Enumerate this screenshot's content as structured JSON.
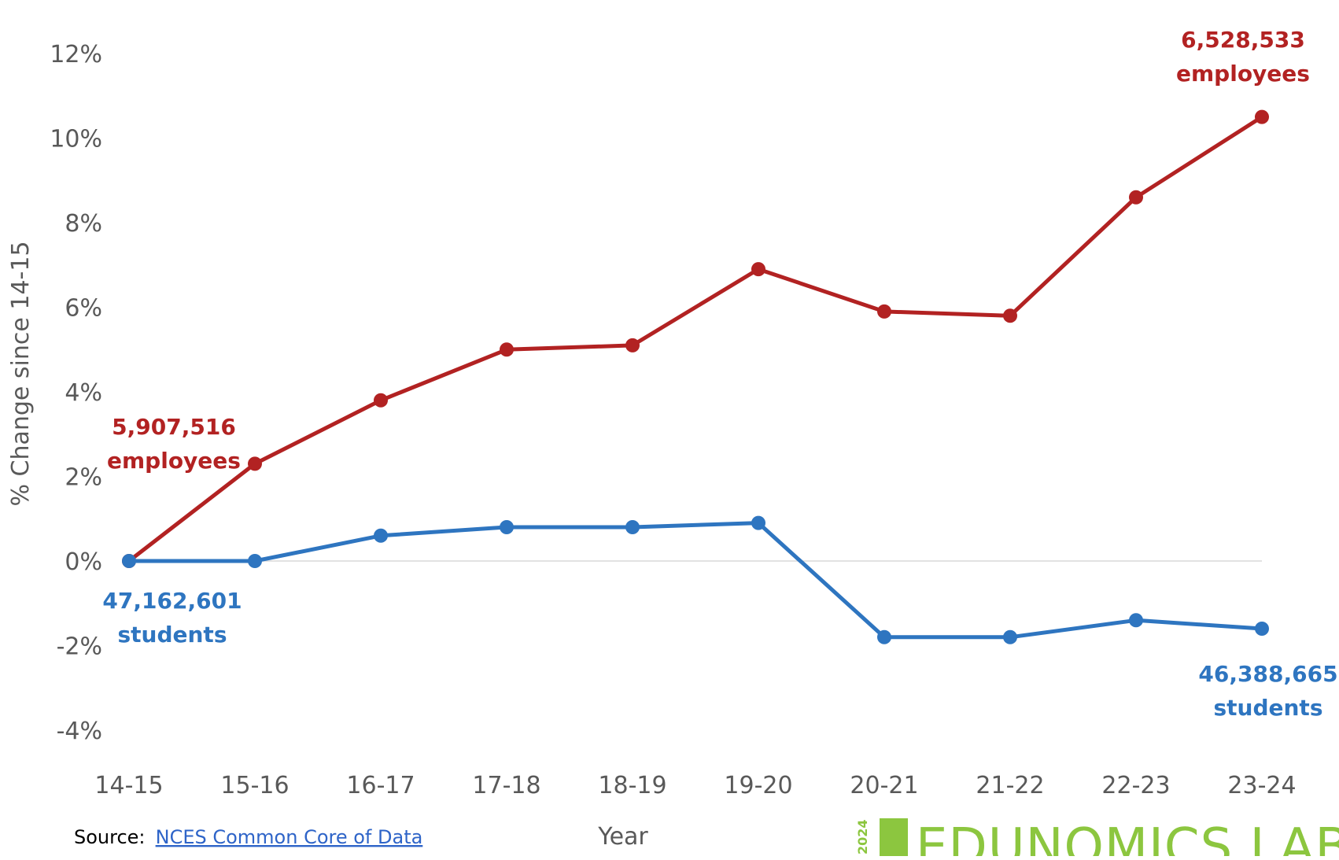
{
  "chart_data": {
    "type": "line",
    "title": "",
    "xlabel": "Year",
    "ylabel": "% Change since 14-15",
    "categories": [
      "14-15",
      "15-16",
      "16-17",
      "17-18",
      "18-19",
      "19-20",
      "20-21",
      "21-22",
      "22-23",
      "23-24"
    ],
    "ylim": [
      -4,
      12
    ],
    "yticks": [
      -4,
      -2,
      0,
      2,
      4,
      6,
      8,
      10,
      12
    ],
    "ytick_labels": [
      "-4%",
      "-2%",
      "0%",
      "2%",
      "4%",
      "6%",
      "8%",
      "10%",
      "12%"
    ],
    "grid": false,
    "zero_line": true,
    "series": [
      {
        "color": "#b22222",
        "values": [
          0.0,
          2.3,
          3.8,
          5.0,
          5.1,
          6.9,
          5.9,
          5.8,
          8.6,
          10.5
        ]
      },
      {
        "color": "#2e75c0",
        "values": [
          0.0,
          0.0,
          0.6,
          0.8,
          0.8,
          0.9,
          -1.8,
          -1.8,
          -1.4,
          -1.6
        ]
      }
    ],
    "annotations": {
      "employees_start": {
        "value": "5,907,516",
        "unit": "employees"
      },
      "employees_end": {
        "value": "6,528,533",
        "unit": "employees"
      },
      "students_start": {
        "value": "47,162,601",
        "unit": "students"
      },
      "students_end": {
        "value": "46,388,665",
        "unit": "students"
      }
    }
  },
  "source": {
    "label": "Source:",
    "link_text": "NCES Common Core of Data"
  },
  "brand": {
    "name": "EDUNOMICS LAB",
    "year": "2024",
    "color": "#8cc63f"
  }
}
